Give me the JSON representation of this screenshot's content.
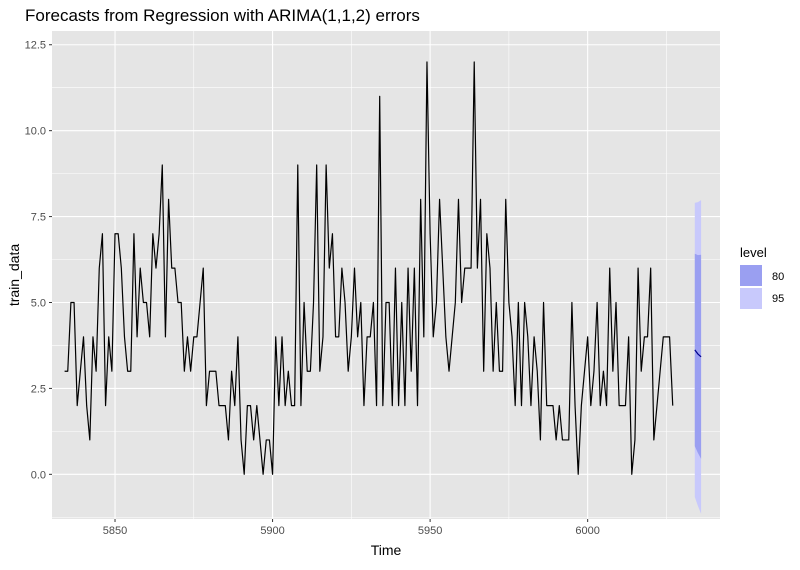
{
  "chart_data": {
    "type": "line",
    "title": "Forecasts from Regression with ARIMA(1,1,2) errors",
    "xlabel": "Time",
    "ylabel": "train_data",
    "xlim": [
      5830,
      6042
    ],
    "ylim": [
      -1.3,
      12.9
    ],
    "x_ticks": [
      5850,
      5900,
      5950,
      6000
    ],
    "x_tick_labels": [
      "5850",
      "5900",
      "5950",
      "6000"
    ],
    "y_ticks": [
      0,
      2.5,
      5,
      7.5,
      10,
      12.5
    ],
    "y_tick_labels": [
      "0.0",
      "2.5",
      "5.0",
      "7.5",
      "10.0",
      "12.5"
    ],
    "grid": true,
    "legend_position": "right",
    "colors": {
      "panel": "#e5e5e5",
      "grid": "#ffffff",
      "series": "#000000",
      "forecast": "#00008b",
      "band80": "#9a9ff1",
      "band95": "#c8c9fc"
    },
    "series": [
      {
        "x_start": 5834,
        "values": [
          3,
          3,
          5,
          5,
          2,
          3,
          4,
          2,
          1,
          4,
          3,
          6,
          7,
          2,
          4,
          3,
          7,
          7,
          6,
          4,
          3,
          3,
          7,
          4,
          6,
          5,
          5,
          4,
          7,
          6,
          7,
          9,
          4,
          8,
          6,
          6,
          5,
          5,
          3,
          4,
          3,
          4,
          4,
          5,
          6,
          2,
          3,
          3,
          3,
          2,
          2,
          2,
          1,
          3,
          2,
          4,
          1,
          0,
          2,
          2,
          1,
          2,
          1,
          0,
          1,
          1,
          0,
          4,
          2,
          4,
          2,
          3,
          2,
          2,
          9,
          2,
          5,
          3,
          3,
          5,
          9,
          3,
          4,
          9,
          6,
          7,
          4,
          4,
          6,
          5,
          3,
          4,
          6,
          4,
          5,
          2,
          4,
          4,
          5,
          2,
          11,
          2,
          5,
          5,
          2,
          6,
          2,
          5,
          2,
          6,
          3,
          6,
          2,
          8,
          4,
          12,
          7,
          4,
          5,
          8,
          6,
          4,
          3,
          4,
          5,
          8,
          5,
          6,
          6,
          6,
          12,
          6,
          8,
          3,
          7,
          6,
          3,
          5,
          3,
          3,
          8,
          5,
          4,
          2,
          5,
          2,
          5,
          4,
          2,
          4,
          3,
          1,
          5,
          2,
          2,
          2,
          1,
          2,
          1,
          1,
          1,
          5,
          2,
          0,
          2,
          3,
          4,
          2,
          3,
          5,
          2,
          3,
          2,
          6,
          3,
          5,
          2,
          2,
          2,
          4,
          0,
          1,
          6,
          3,
          4,
          4,
          6,
          1,
          2,
          3,
          4,
          4,
          4,
          2
        ]
      }
    ],
    "forecast": {
      "x": [
        6034,
        6035,
        6036
      ],
      "mean": [
        3.62,
        3.5,
        3.42
      ],
      "lo80": [
        0.82,
        0.62,
        0.45
      ],
      "hi80": [
        6.42,
        6.38,
        6.39
      ],
      "lo95": [
        -0.66,
        -0.92,
        -1.15
      ],
      "hi95": [
        7.9,
        7.92,
        7.98
      ]
    },
    "legend": {
      "title": "level",
      "entries": [
        {
          "label": "80",
          "color": "#9a9ff1"
        },
        {
          "label": "95",
          "color": "#c8c9fc"
        }
      ]
    }
  }
}
